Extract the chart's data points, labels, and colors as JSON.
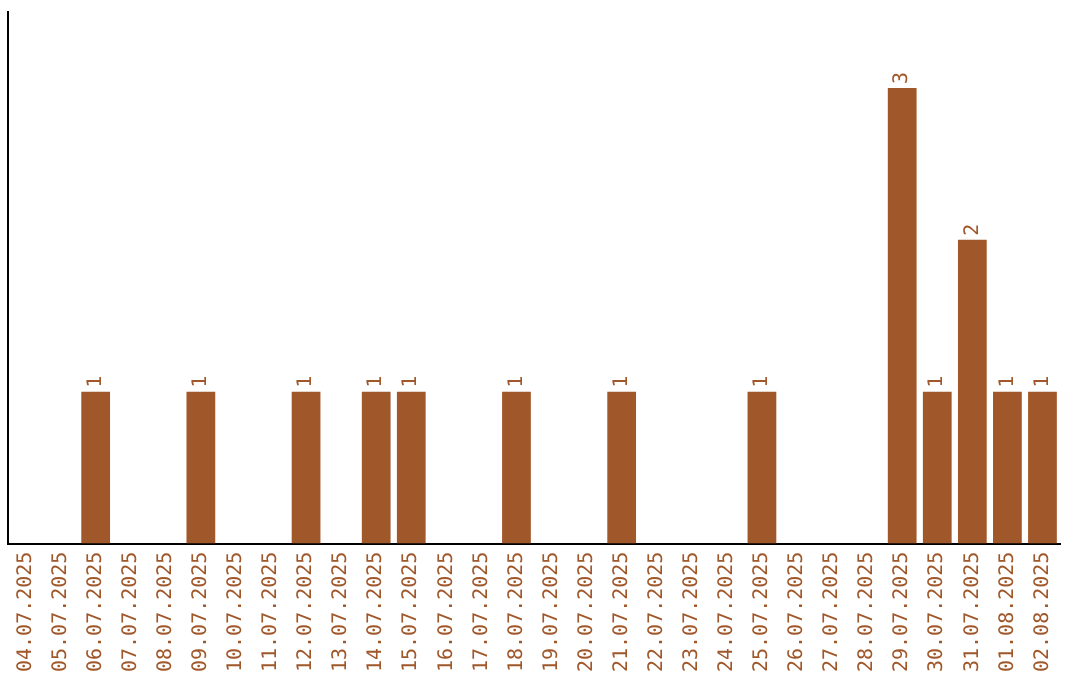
{
  "chart_data": {
    "type": "bar",
    "categories": [
      "04.07.2025",
      "05.07.2025",
      "06.07.2025",
      "07.07.2025",
      "08.07.2025",
      "09.07.2025",
      "10.07.2025",
      "11.07.2025",
      "12.07.2025",
      "13.07.2025",
      "14.07.2025",
      "15.07.2025",
      "16.07.2025",
      "17.07.2025",
      "18.07.2025",
      "19.07.2025",
      "20.07.2025",
      "21.07.2025",
      "22.07.2025",
      "23.07.2025",
      "24.07.2025",
      "25.07.2025",
      "26.07.2025",
      "27.07.2025",
      "28.07.2025",
      "29.07.2025",
      "30.07.2025",
      "31.07.2025",
      "01.08.2025",
      "02.08.2025"
    ],
    "values": [
      0,
      0,
      1,
      0,
      0,
      1,
      0,
      0,
      1,
      0,
      1,
      1,
      0,
      0,
      1,
      0,
      0,
      1,
      0,
      0,
      0,
      1,
      0,
      0,
      0,
      3,
      1,
      2,
      1,
      1
    ],
    "value_labels": [
      null,
      null,
      "1",
      null,
      null,
      "1",
      null,
      null,
      "1",
      null,
      "1",
      "1",
      null,
      null,
      "1",
      null,
      null,
      "1",
      null,
      null,
      null,
      "1",
      null,
      null,
      null,
      "3",
      "1",
      "2",
      "1",
      "1"
    ],
    "color": "#a0572a",
    "grid": false,
    "legend": false
  }
}
